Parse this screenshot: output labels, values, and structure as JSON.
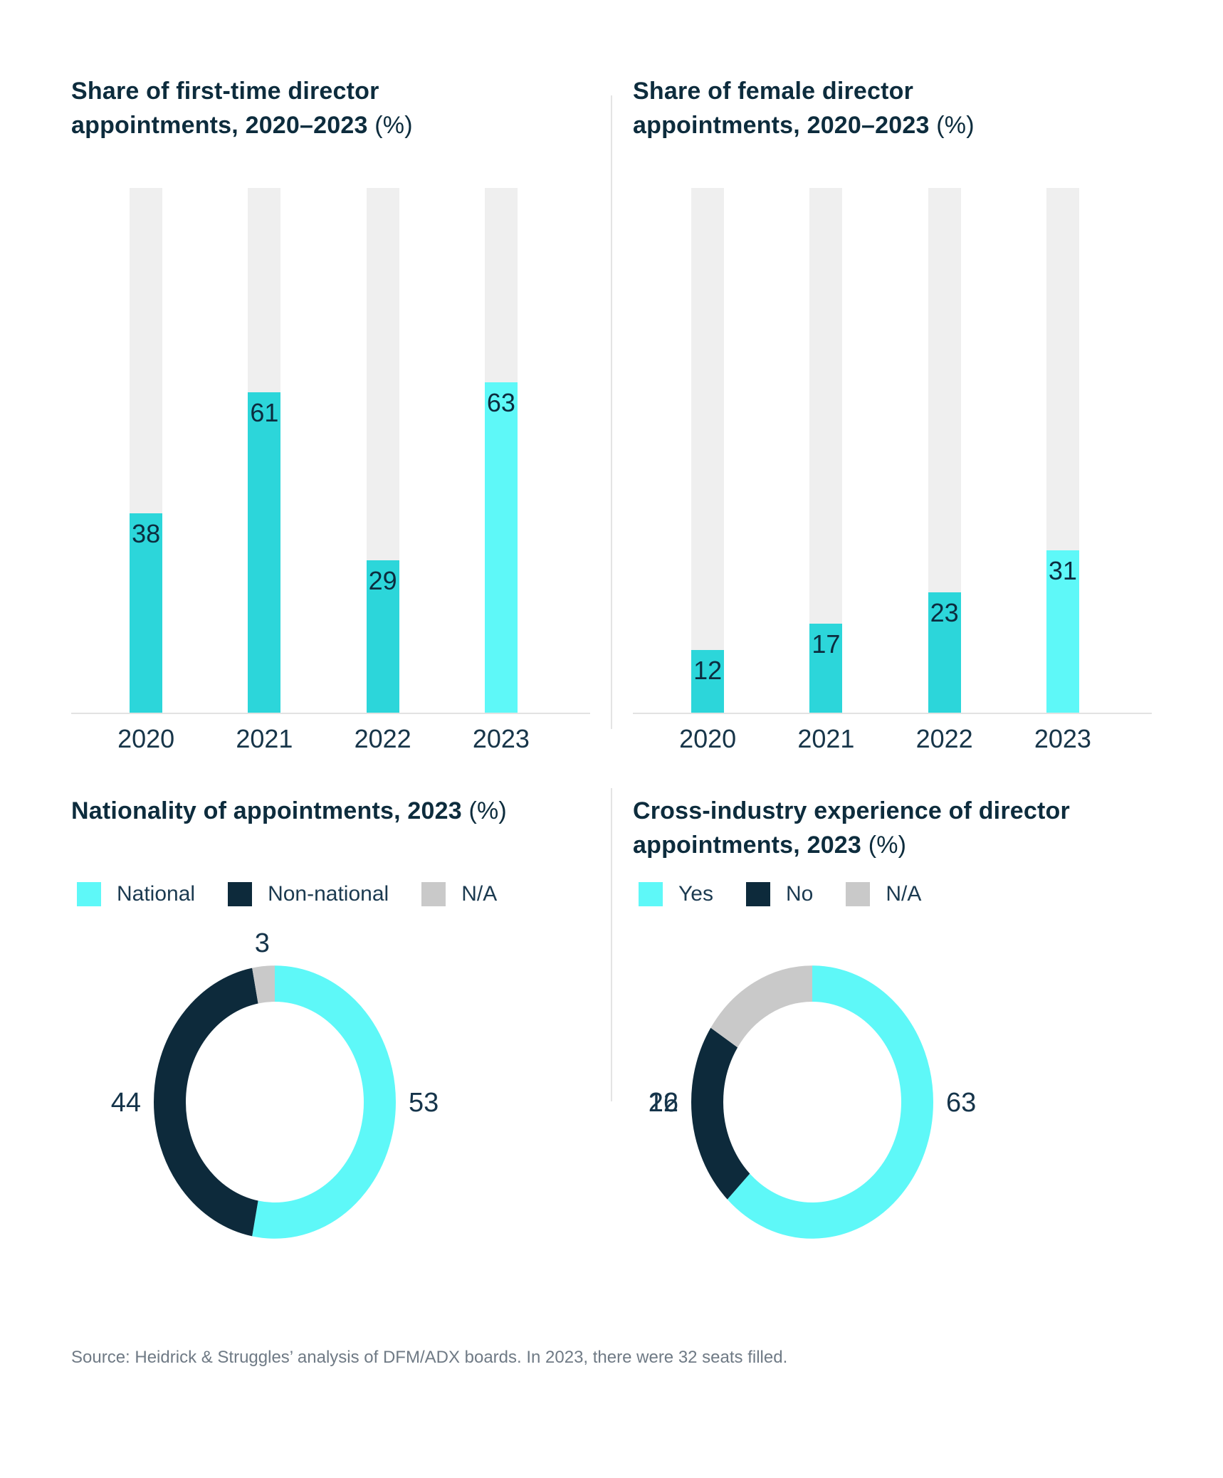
{
  "colors": {
    "teal": "#2cd6da",
    "cyan": "#5ef8f8",
    "navy": "#0d2a3b",
    "gray": "#c9c9c9",
    "track": "#efefef",
    "axis": "#e2e2e2",
    "title": "#0d2c3d",
    "label": "#15344a",
    "source": "#6f7a85"
  },
  "chart_data": [
    {
      "type": "bar",
      "title": "Share of first-time director appointments, 2020–2023 (%)",
      "title_bold": "Share of first-time director appointments, 2020–2023",
      "title_suffix": "(%)",
      "categories": [
        "2020",
        "2021",
        "2022",
        "2023"
      ],
      "values": [
        38,
        61,
        29,
        63
      ],
      "bar_colors": [
        "teal",
        "teal",
        "teal",
        "cyan"
      ],
      "ylim": [
        0,
        100
      ],
      "grid": false,
      "value_labels": "inside-top"
    },
    {
      "type": "bar",
      "title": "Share of female director appointments, 2020–2023 (%)",
      "title_bold": "Share of female director appointments, 2020–2023",
      "title_suffix": "(%)",
      "categories": [
        "2020",
        "2021",
        "2022",
        "2023"
      ],
      "values": [
        12,
        17,
        23,
        31
      ],
      "bar_colors": [
        "teal",
        "teal",
        "teal",
        "cyan"
      ],
      "ylim": [
        0,
        100
      ],
      "grid": false,
      "value_labels": "inside-top"
    },
    {
      "type": "donut",
      "title": "Nationality of appointments, 2023 (%)",
      "title_bold": "Nationality of appointments, 2023",
      "title_suffix": "(%)",
      "legend_position": "top",
      "segments": [
        {
          "label": "National",
          "value": 53,
          "color": "cyan"
        },
        {
          "label": "Non-national",
          "value": 44,
          "color": "navy"
        },
        {
          "label": "N/A",
          "value": 3,
          "color": "gray"
        }
      ]
    },
    {
      "type": "donut",
      "title": "Cross-industry experience of director appointments, 2023 (%)",
      "title_bold": "Cross-industry experience of director appointments, 2023",
      "title_suffix": "(%)",
      "legend_position": "top",
      "segments": [
        {
          "label": "Yes",
          "value": 63,
          "color": "cyan"
        },
        {
          "label": "No",
          "value": 22,
          "color": "navy"
        },
        {
          "label": "N/A",
          "value": 16,
          "color": "gray"
        }
      ]
    }
  ],
  "source": "Source: Heidrick & Struggles’ analysis of DFM/ADX boards. In 2023, there were 32 seats filled."
}
